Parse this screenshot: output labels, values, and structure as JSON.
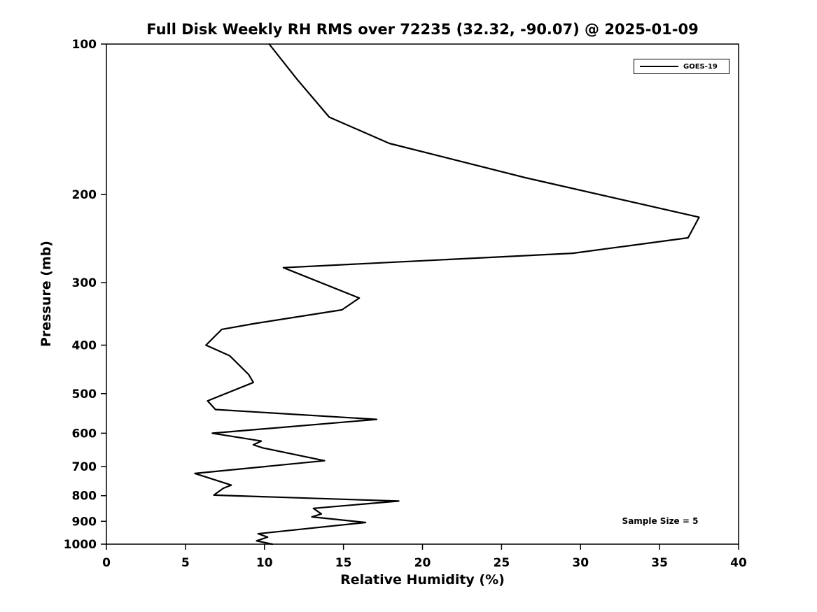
{
  "chart_data": {
    "type": "line",
    "title": "Full Disk Weekly RH RMS over 72235 (32.32, -90.07) @ 2025-01-09",
    "xlabel": "Relative Humidity (%)",
    "ylabel": "Pressure (mb)",
    "xlim": [
      0,
      40
    ],
    "ylim": [
      100,
      1000
    ],
    "yscale": "log",
    "y_inverted": true,
    "grid": false,
    "x_ticks": [
      0,
      5,
      10,
      15,
      20,
      25,
      30,
      35,
      40
    ],
    "y_ticks": [
      100,
      200,
      300,
      400,
      500,
      600,
      700,
      800,
      900,
      1000
    ],
    "legend": {
      "position": "top-right"
    },
    "sample_size": 5,
    "annotations": [
      {
        "text": "Sample Size = 5",
        "x": 35,
        "y": 890
      }
    ],
    "series": [
      {
        "name": "GOES-19",
        "color": "#000000",
        "line_width": 2.2,
        "y_pressure_mb": [
          100,
          118,
          140,
          158,
          185,
          222,
          244,
          262,
          280,
          322,
          340,
          362,
          372,
          400,
          420,
          458,
          475,
          517,
          538,
          563,
          600,
          622,
          633,
          642,
          681,
          722,
          762,
          773,
          798,
          820,
          848,
          870,
          882,
          905,
          953,
          968,
          985,
          1000
        ],
        "x_rh_percent": [
          10.3,
          12.1,
          14.1,
          17.9,
          26.5,
          37.5,
          36.8,
          29.5,
          11.2,
          16.0,
          14.9,
          9.4,
          7.3,
          6.3,
          7.8,
          9.0,
          9.3,
          6.4,
          6.9,
          17.1,
          6.7,
          9.8,
          9.3,
          9.9,
          13.8,
          5.6,
          7.9,
          7.4,
          6.8,
          18.5,
          13.1,
          13.6,
          13.0,
          16.4,
          9.6,
          10.2,
          9.5,
          10.5
        ]
      }
    ]
  }
}
